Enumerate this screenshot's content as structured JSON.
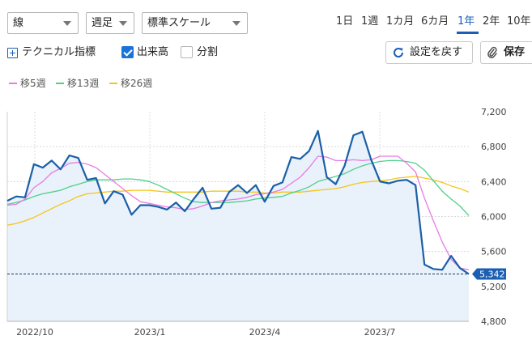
{
  "controls": {
    "chart_type": "線",
    "interval": "週足",
    "scale": "標準スケール"
  },
  "periods": [
    "1日",
    "1週",
    "1カ月",
    "6カ月",
    "1年",
    "2年",
    "10年"
  ],
  "active_period": "1年",
  "toolbar": {
    "technical_label": "テクニカル指標",
    "volume_label": "出来高",
    "volume_checked": true,
    "split_label": "分割",
    "split_checked": false,
    "reset_label": "設定を戻す",
    "save_label": "保存"
  },
  "legend": [
    {
      "name": "移5週",
      "color": "#e57ce5"
    },
    {
      "name": "移13週",
      "color": "#4fd08a"
    },
    {
      "name": "移26週",
      "color": "#f5c518"
    }
  ],
  "chart_data": {
    "type": "line",
    "title": "",
    "x_tick_labels": [
      "2022/10",
      "2023/1",
      "2023/4",
      "2023/7"
    ],
    "y_tick_labels": [
      "7,200",
      "6,800",
      "6,400",
      "6,000",
      "5,600",
      "5,200",
      "4,800"
    ],
    "ylim": [
      4800,
      7200
    ],
    "last_price_label": "5,342",
    "last_price": 5342,
    "grid": true,
    "series": [
      {
        "name": "price",
        "color": "#1a5fa8",
        "values": [
          6180,
          6230,
          6220,
          6600,
          6560,
          6640,
          6540,
          6700,
          6670,
          6420,
          6440,
          6150,
          6290,
          6250,
          6020,
          6130,
          6130,
          6110,
          6080,
          6160,
          6060,
          6200,
          6330,
          6090,
          6100,
          6280,
          6360,
          6270,
          6360,
          6170,
          6350,
          6390,
          6680,
          6660,
          6750,
          6980,
          6450,
          6370,
          6580,
          6930,
          6970,
          6650,
          6400,
          6380,
          6410,
          6420,
          6360,
          5450,
          5400,
          5390,
          5550,
          5410,
          5342
        ]
      },
      {
        "name": "移5週",
        "color": "#e57ce5",
        "values": [
          6130,
          6140,
          6200,
          6330,
          6400,
          6500,
          6550,
          6610,
          6620,
          6600,
          6560,
          6480,
          6400,
          6320,
          6240,
          6170,
          6150,
          6130,
          6110,
          6100,
          6080,
          6090,
          6120,
          6160,
          6180,
          6190,
          6200,
          6220,
          6250,
          6260,
          6280,
          6310,
          6380,
          6450,
          6560,
          6690,
          6680,
          6640,
          6640,
          6650,
          6640,
          6650,
          6690,
          6690,
          6690,
          6610,
          6510,
          6210,
          5950,
          5710,
          5510,
          5410,
          5390
        ]
      },
      {
        "name": "移13週",
        "color": "#4fd08a",
        "values": [
          6140,
          6160,
          6190,
          6230,
          6260,
          6280,
          6300,
          6340,
          6370,
          6400,
          6420,
          6420,
          6420,
          6430,
          6430,
          6420,
          6400,
          6360,
          6310,
          6260,
          6210,
          6170,
          6160,
          6160,
          6160,
          6160,
          6170,
          6180,
          6200,
          6210,
          6220,
          6230,
          6270,
          6300,
          6340,
          6400,
          6430,
          6460,
          6490,
          6540,
          6580,
          6610,
          6630,
          6640,
          6640,
          6630,
          6610,
          6530,
          6410,
          6290,
          6200,
          6120,
          6010
        ]
      },
      {
        "name": "移26週",
        "color": "#f5c518",
        "values": [
          5900,
          5920,
          5950,
          5990,
          6040,
          6090,
          6140,
          6180,
          6230,
          6260,
          6270,
          6280,
          6290,
          6290,
          6300,
          6300,
          6300,
          6290,
          6280,
          6280,
          6280,
          6280,
          6280,
          6290,
          6290,
          6290,
          6290,
          6280,
          6280,
          6270,
          6270,
          6280,
          6280,
          6280,
          6290,
          6300,
          6310,
          6320,
          6340,
          6370,
          6390,
          6400,
          6410,
          6420,
          6440,
          6450,
          6460,
          6440,
          6420,
          6390,
          6350,
          6320,
          6280
        ]
      }
    ]
  }
}
